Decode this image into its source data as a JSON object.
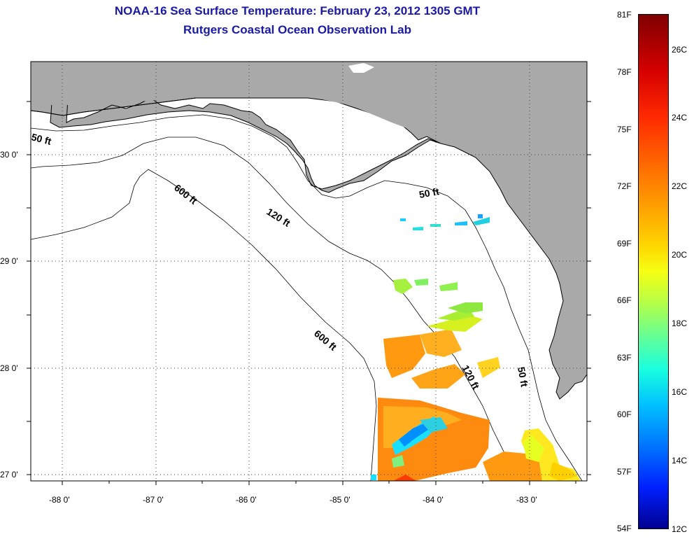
{
  "title": {
    "line1": "NOAA-16 Sea Surface Temperature:  February 23, 2012 1305 GMT",
    "line2": "Rutgers Coastal Ocean Observation Lab"
  },
  "map": {
    "lat_labels": [
      "30 0'",
      "29 0'",
      "28 0'",
      "27 0'"
    ],
    "lon_labels": [
      "-88 0'",
      "-87 0'",
      "-86 0'",
      "-85 0'",
      "-84 0'",
      "-83 0'"
    ],
    "contour_labels": {
      "c50_west": "50 ft",
      "c50_big_bend": "50 ft",
      "c50_south": "50 ft",
      "c120_north": "120 ft",
      "c120_south": "120 ft",
      "c600_north": "600 ft",
      "c600_south": "600 ft"
    },
    "colors": {
      "land": "#a9a9a9",
      "ocean_no_data": "#ffffff",
      "coastline": "#000000"
    }
  },
  "colorbar": {
    "fahrenheit": [
      "81F",
      "78F",
      "75F",
      "72F",
      "69F",
      "66F",
      "63F",
      "60F",
      "57F",
      "54F"
    ],
    "celsius": [
      "26C",
      "24C",
      "22C",
      "20C",
      "18C",
      "16C",
      "14C",
      "12C"
    ],
    "range_f": [
      54,
      81
    ],
    "range_c": [
      12,
      27
    ]
  }
}
